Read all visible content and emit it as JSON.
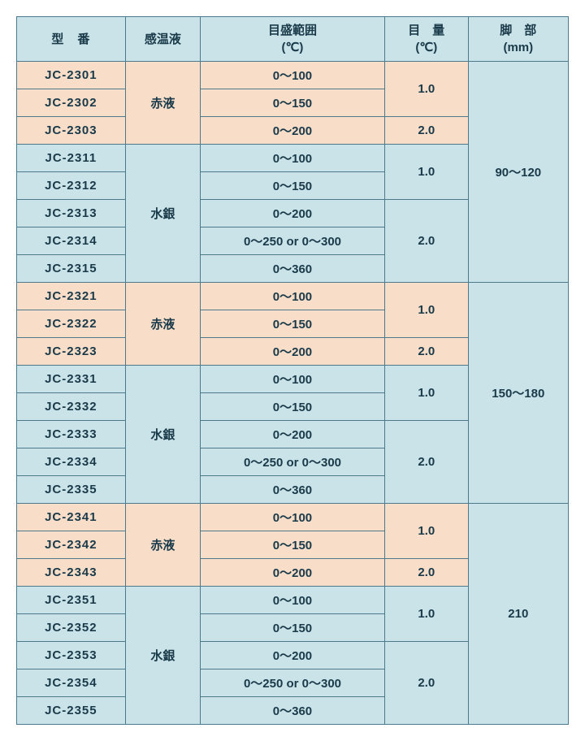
{
  "headers": {
    "model": "型　番",
    "liquid": "感温液",
    "range": "目盛範囲\n(℃)",
    "division": "目　量\n(℃)",
    "leg": "脚　部\n(mm)"
  },
  "liquids": {
    "red": "赤液",
    "mercury": "水銀"
  },
  "ranges": {
    "r100": "0～100",
    "r150": "0～150",
    "r200": "0～200",
    "r250_300": "0～250 or 0～300",
    "r360": "0～360"
  },
  "divisions": {
    "d1": "1.0",
    "d2": "2.0"
  },
  "legs": {
    "l1": "90～120",
    "l2": "150～180",
    "l3": "210"
  },
  "models": {
    "m2301": "JC-2301",
    "m2302": "JC-2302",
    "m2303": "JC-2303",
    "m2311": "JC-2311",
    "m2312": "JC-2312",
    "m2313": "JC-2313",
    "m2314": "JC-2314",
    "m2315": "JC-2315",
    "m2321": "JC-2321",
    "m2322": "JC-2322",
    "m2323": "JC-2323",
    "m2331": "JC-2331",
    "m2332": "JC-2332",
    "m2333": "JC-2333",
    "m2334": "JC-2334",
    "m2335": "JC-2335",
    "m2341": "JC-2341",
    "m2342": "JC-2342",
    "m2343": "JC-2343",
    "m2351": "JC-2351",
    "m2352": "JC-2352",
    "m2353": "JC-2353",
    "m2354": "JC-2354",
    "m2355": "JC-2355"
  },
  "colors": {
    "border": "#4a7a8c",
    "header_bg": "#c9e3e8",
    "peach_bg": "#f8ddc8",
    "blue_bg": "#c9e3e8",
    "text": "#1a3a4a"
  }
}
